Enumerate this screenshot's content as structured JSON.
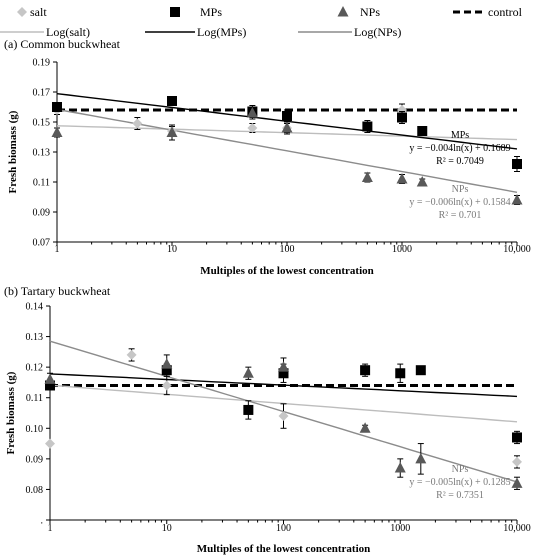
{
  "legend": {
    "row1": [
      {
        "key": "salt",
        "label": "salt",
        "symbol": "diamond",
        "color": "#c6c6c6"
      },
      {
        "key": "mps",
        "label": "MPs",
        "symbol": "square",
        "color": "#000000"
      },
      {
        "key": "nps",
        "label": "NPs",
        "symbol": "triangle",
        "color": "#595959"
      },
      {
        "key": "control",
        "label": "control",
        "symbol": "dash",
        "color": "#000000"
      }
    ],
    "row2": [
      {
        "key": "log_salt",
        "label": "Log(salt)",
        "color": "#bdbdbd"
      },
      {
        "key": "log_mps",
        "label": "Log(MPs)",
        "color": "#000000"
      },
      {
        "key": "log_nps",
        "label": "Log(NPs)",
        "color": "#8c8c8c"
      }
    ]
  },
  "chart_data": [
    {
      "type": "scatter",
      "panel_label": "(a)",
      "title": "Common buckwheat",
      "xlabel": "Multiples of the lowest concentration",
      "ylabel": "Fresh biomass (g)",
      "xscale": "log",
      "xlim": [
        1,
        10000
      ],
      "ylim": [
        0.07,
        0.19
      ],
      "xticks": [
        "1",
        "10",
        "100",
        "1000",
        "10,000"
      ],
      "yticks": [
        "0.07",
        "0.09",
        "0.11",
        "0.13",
        "0.15",
        "0.17",
        "0.19"
      ],
      "series": [
        {
          "name": "salt",
          "marker": "diamond",
          "color": "#c6c6c6",
          "points": [
            [
              1,
              0.158,
              0.003
            ],
            [
              5,
              0.149,
              0.004
            ],
            [
              10,
              0.144,
              0.003
            ],
            [
              50,
              0.146,
              0.003
            ],
            [
              100,
              0.146,
              0.003
            ],
            [
              1000,
              0.158,
              0.004
            ]
          ]
        },
        {
          "name": "MPs",
          "marker": "square",
          "color": "#000000",
          "points": [
            [
              1,
              0.16,
              0.003
            ],
            [
              10,
              0.164,
              0.002
            ],
            [
              50,
              0.157,
              0.004
            ],
            [
              100,
              0.154,
              0.004
            ],
            [
              500,
              0.147,
              0.004
            ],
            [
              1000,
              0.153,
              0.004
            ],
            [
              1500,
              0.144,
              0.002
            ],
            [
              10000,
              0.122,
              0.005
            ]
          ]
        },
        {
          "name": "NPs",
          "marker": "triangle",
          "color": "#595959",
          "points": [
            [
              1,
              0.143,
              0.003
            ],
            [
              10,
              0.143,
              0.005
            ],
            [
              50,
              0.156,
              0.004
            ],
            [
              100,
              0.146,
              0.004
            ],
            [
              500,
              0.113,
              0.003
            ],
            [
              1000,
              0.112,
              0.003
            ],
            [
              1500,
              0.11,
              0.002
            ],
            [
              10000,
              0.098,
              0.003
            ]
          ]
        }
      ],
      "control": 0.158,
      "fits": [
        {
          "name": "Log(salt)",
          "color": "#bdbdbd",
          "a": -0.001,
          "b": 0.1475
        },
        {
          "name": "Log(MPs)",
          "color": "#000000",
          "a": -0.004,
          "b": 0.1689
        },
        {
          "name": "Log(NPs)",
          "color": "#8c8c8c",
          "a": -0.006,
          "b": 0.1584
        }
      ],
      "annotations": [
        {
          "lines": [
            "MPs",
            "y = −0.004ln(x) + 0.1689",
            "R² = 0.7049"
          ],
          "color": "#000000"
        },
        {
          "lines": [
            "NPs",
            "y = −0.006ln(x) + 0.1584",
            "R² = 0.701"
          ],
          "color": "#7a7a7a"
        }
      ]
    },
    {
      "type": "scatter",
      "panel_label": "(b)",
      "title": "Tartary buckwheat",
      "xlabel": "Multiples of the lowest concentration",
      "ylabel": "Fresh biomass (g)",
      "xscale": "log",
      "xlim": [
        1,
        10000
      ],
      "ylim": [
        0.07,
        0.14
      ],
      "xticks": [
        "1",
        "10",
        "100",
        "1000",
        "10,000"
      ],
      "yticks": [
        ".",
        "0.08",
        "0.09",
        "0.10",
        "0.11",
        "0.12",
        "0.13",
        "0.14"
      ],
      "series": [
        {
          "name": "salt",
          "marker": "diamond",
          "color": "#c6c6c6",
          "points": [
            [
              1,
              0.095,
              0
            ],
            [
              5,
              0.124,
              0.002
            ],
            [
              10,
              0.114,
              0.003
            ],
            [
              100,
              0.104,
              0.004
            ],
            [
              10000,
              0.089,
              0.002
            ]
          ]
        },
        {
          "name": "MPs",
          "marker": "square",
          "color": "#000000",
          "points": [
            [
              1,
              0.114,
              0
            ],
            [
              10,
              0.119,
              0.002
            ],
            [
              50,
              0.106,
              0.003
            ],
            [
              100,
              0.118,
              0.003
            ],
            [
              500,
              0.119,
              0.002
            ],
            [
              1000,
              0.118,
              0.003
            ],
            [
              1500,
              0.119,
              0.001
            ],
            [
              10000,
              0.097,
              0.002
            ]
          ]
        },
        {
          "name": "NPs",
          "marker": "triangle",
          "color": "#595959",
          "points": [
            [
              1,
              0.116,
              0.002
            ],
            [
              10,
              0.121,
              0.003
            ],
            [
              50,
              0.118,
              0.002
            ],
            [
              100,
              0.12,
              0.003
            ],
            [
              500,
              0.1,
              0.001
            ],
            [
              1000,
              0.087,
              0.003
            ],
            [
              1500,
              0.09,
              0.005
            ],
            [
              10000,
              0.082,
              0.002
            ]
          ]
        }
      ],
      "control": 0.114,
      "fits": [
        {
          "name": "Log(salt)",
          "color": "#bdbdbd",
          "a": -0.0013,
          "b": 0.1141
        },
        {
          "name": "Log(MPs)",
          "color": "#000000",
          "a": -0.0008,
          "b": 0.1178
        },
        {
          "name": "Log(NPs)",
          "color": "#8c8c8c",
          "a": -0.005,
          "b": 0.1285
        }
      ],
      "annotations": [
        {
          "lines": [
            "NPs",
            "y = −0.005ln(x) + 0.1285",
            "R² = 0.7351"
          ],
          "color": "#7a7a7a"
        }
      ]
    }
  ]
}
